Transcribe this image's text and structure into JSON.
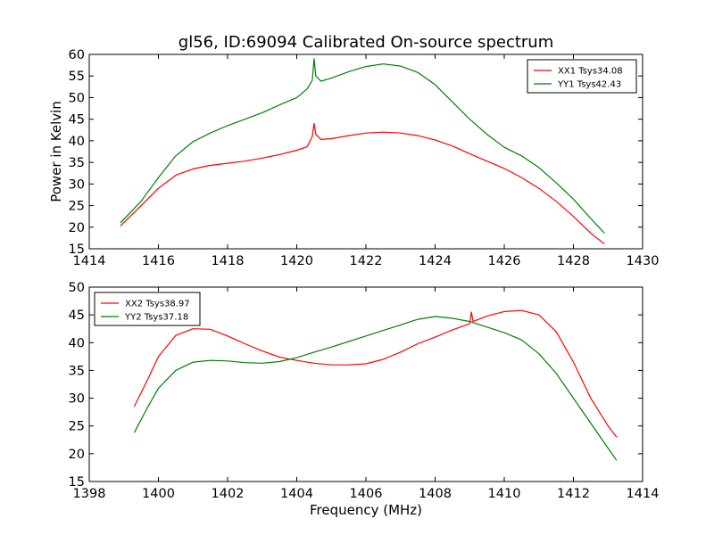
{
  "title": "gl56, ID:69094 Calibrated On-source spectrum",
  "xlabel": "Frequency (MHz)",
  "ylabel": "Power in Kelvin",
  "chart_data": [
    {
      "type": "line",
      "title": "gl56, ID:69094 Calibrated On-source spectrum",
      "xlabel": "",
      "ylabel": "Power in Kelvin",
      "xlim": [
        1414,
        1430
      ],
      "ylim": [
        15,
        60
      ],
      "xticks": [
        1414,
        1416,
        1418,
        1420,
        1422,
        1424,
        1426,
        1428,
        1430
      ],
      "yticks": [
        15,
        20,
        25,
        30,
        35,
        40,
        45,
        50,
        55,
        60
      ],
      "legend": "top-right",
      "series": [
        {
          "name": "XX1 Tsys34.08",
          "color": "#ff0000",
          "x": [
            1414.9,
            1415.5,
            1416.0,
            1416.5,
            1417.0,
            1417.5,
            1418.0,
            1418.5,
            1419.0,
            1419.5,
            1420.0,
            1420.3,
            1420.45,
            1420.5,
            1420.55,
            1420.7,
            1421.0,
            1421.5,
            1422.0,
            1422.5,
            1423.0,
            1423.5,
            1424.0,
            1424.5,
            1425.0,
            1425.5,
            1426.0,
            1426.5,
            1427.0,
            1427.5,
            1428.0,
            1428.5,
            1428.9
          ],
          "y": [
            20.3,
            25.0,
            29.0,
            32.0,
            33.5,
            34.3,
            34.8,
            35.3,
            36.0,
            36.8,
            37.8,
            38.6,
            41.0,
            44.0,
            41.5,
            40.3,
            40.5,
            41.2,
            41.8,
            42.0,
            41.8,
            41.2,
            40.2,
            38.8,
            37.0,
            35.3,
            33.6,
            31.5,
            29.0,
            26.0,
            22.5,
            18.6,
            16.1
          ]
        },
        {
          "name": "YY1 Tsys42.43",
          "color": "#007f00",
          "x": [
            1414.9,
            1415.5,
            1416.0,
            1416.5,
            1417.0,
            1417.5,
            1418.0,
            1418.5,
            1419.0,
            1419.5,
            1420.0,
            1420.3,
            1420.45,
            1420.5,
            1420.55,
            1420.7,
            1421.0,
            1421.5,
            1422.0,
            1422.5,
            1423.0,
            1423.5,
            1424.0,
            1424.5,
            1425.0,
            1425.5,
            1426.0,
            1426.5,
            1427.0,
            1427.5,
            1428.0,
            1428.5,
            1428.9
          ],
          "y": [
            21.0,
            26.0,
            31.5,
            36.5,
            39.8,
            41.8,
            43.5,
            45.0,
            46.5,
            48.3,
            50.0,
            52.0,
            54.0,
            59.0,
            55.0,
            53.8,
            54.5,
            56.0,
            57.2,
            57.8,
            57.3,
            55.8,
            53.0,
            49.0,
            45.0,
            41.5,
            38.5,
            36.5,
            33.8,
            30.3,
            26.5,
            22.0,
            18.6
          ]
        }
      ]
    },
    {
      "type": "line",
      "title": "",
      "xlabel": "Frequency (MHz)",
      "ylabel": "",
      "xlim": [
        1398,
        1414
      ],
      "ylim": [
        15,
        50
      ],
      "xticks": [
        1398,
        1400,
        1402,
        1404,
        1406,
        1408,
        1410,
        1412,
        1414
      ],
      "yticks": [
        15,
        20,
        25,
        30,
        35,
        40,
        45,
        50
      ],
      "legend": "top-left",
      "series": [
        {
          "name": "XX2 Tsys38.97",
          "color": "#ff0000",
          "x": [
            1399.3,
            1399.7,
            1400.0,
            1400.5,
            1401.0,
            1401.5,
            1402.0,
            1402.5,
            1403.0,
            1403.5,
            1404.0,
            1404.5,
            1405.0,
            1405.5,
            1406.0,
            1406.5,
            1407.0,
            1407.5,
            1408.0,
            1408.5,
            1409.0,
            1409.05,
            1409.1,
            1409.5,
            1410.0,
            1410.5,
            1411.0,
            1411.5,
            1412.0,
            1412.5,
            1413.0,
            1413.25
          ],
          "y": [
            28.5,
            33.5,
            37.5,
            41.3,
            42.5,
            42.4,
            41.2,
            39.8,
            38.5,
            37.4,
            36.8,
            36.3,
            36.0,
            36.0,
            36.2,
            37.0,
            38.3,
            39.8,
            41.0,
            42.3,
            43.4,
            45.5,
            43.8,
            44.8,
            45.6,
            45.8,
            45.0,
            42.0,
            36.5,
            30.0,
            25.0,
            23.0
          ]
        },
        {
          "name": "YY2 Tsys37.18",
          "color": "#007f00",
          "x": [
            1399.3,
            1399.7,
            1400.0,
            1400.5,
            1401.0,
            1401.5,
            1402.0,
            1402.5,
            1403.0,
            1403.5,
            1404.0,
            1404.5,
            1405.0,
            1405.5,
            1406.0,
            1406.5,
            1407.0,
            1407.5,
            1408.0,
            1408.5,
            1409.0,
            1409.5,
            1410.0,
            1410.5,
            1411.0,
            1411.5,
            1412.0,
            1412.5,
            1413.0,
            1413.25
          ],
          "y": [
            23.8,
            28.5,
            31.8,
            35.0,
            36.5,
            36.8,
            36.7,
            36.4,
            36.3,
            36.6,
            37.3,
            38.3,
            39.2,
            40.2,
            41.2,
            42.2,
            43.2,
            44.2,
            44.7,
            44.4,
            43.8,
            42.8,
            41.8,
            40.5,
            38.0,
            34.5,
            30.0,
            25.5,
            21.0,
            18.8
          ]
        }
      ]
    }
  ]
}
